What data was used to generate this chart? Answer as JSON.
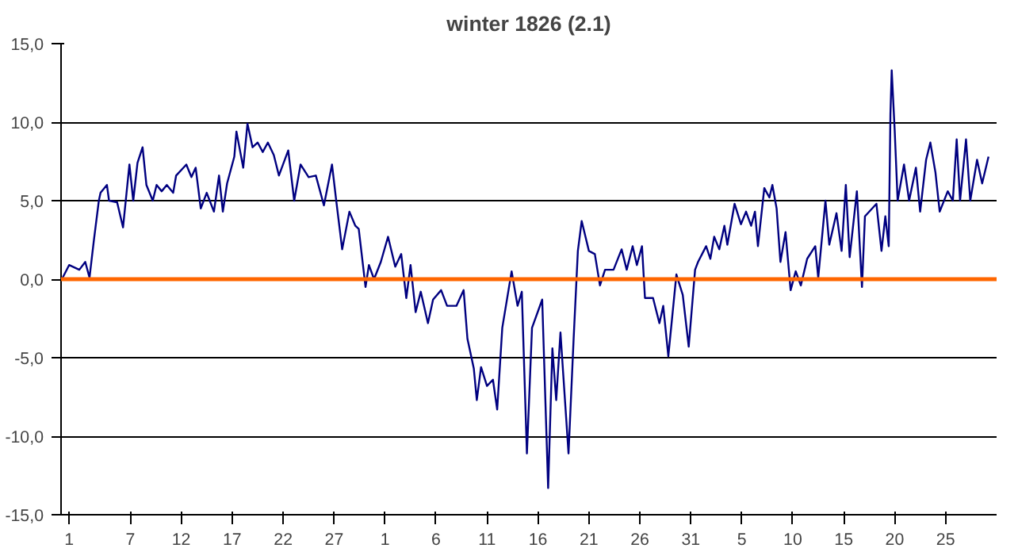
{
  "chart_data": {
    "type": "line",
    "title": "winter 1826 (2.1)",
    "series": [
      {
        "color": "#000080",
        "x": [
          "1825-11-30T07:00",
          "1825-12-01T00:00",
          "1825-12-02T00:00",
          "1825-12-02T14:00",
          "1825-12-03T00:00",
          "1825-12-03T10:00",
          "1825-12-03T22:00",
          "1825-12-04T02:00",
          "1825-12-04T17:00",
          "1825-12-04T22:00",
          "1825-12-05T17:00",
          "1825-12-06T07:00",
          "1825-12-06T22:00",
          "1825-12-07T07:00",
          "1825-12-07T17:00",
          "1825-12-08T05:00",
          "1825-12-08T14:00",
          "1825-12-09T05:00",
          "1825-12-09T14:00",
          "1825-12-10T02:00",
          "1825-12-10T14:00",
          "1825-12-11T05:00",
          "1825-12-11T12:00",
          "1825-12-12T12:00",
          "1825-12-13T00:00",
          "1825-12-13T10:00",
          "1825-12-13T22:00",
          "1825-12-14T12:00",
          "1825-12-15T05:00",
          "1825-12-15T17:00",
          "1825-12-16T02:00",
          "1825-12-16T12:00",
          "1825-12-17T05:00",
          "1825-12-17T10:00",
          "1825-12-18T02:00",
          "1825-12-18T12:00",
          "1825-12-19T00:00",
          "1825-12-19T12:00",
          "1825-12-20T00:00",
          "1825-12-20T12:00",
          "1825-12-21T02:00",
          "1825-12-21T14:00",
          "1825-12-22T12:00",
          "1825-12-23T02:00",
          "1825-12-23T17:00",
          "1825-12-24T12:00",
          "1825-12-25T05:00",
          "1825-12-26T00:00",
          "1825-12-26T19:00",
          "1825-12-27T05:00",
          "1825-12-27T19:00",
          "1825-12-28T12:00",
          "1825-12-29T02:00",
          "1825-12-29T10:00",
          "1825-12-30T02:00",
          "1825-12-30T10:00",
          "1825-12-30T22:00",
          "1825-12-31T14:00",
          "1826-01-01T07:00",
          "1826-01-02T00:00",
          "1826-01-02T14:00",
          "1826-01-03T02:00",
          "1826-01-03T12:00",
          "1826-01-04T00:00",
          "1826-01-04T12:00",
          "1826-01-05T05:00",
          "1826-01-05T17:00",
          "1826-01-06T12:00",
          "1826-01-07T02:00",
          "1826-01-08T00:00",
          "1826-01-08T17:00",
          "1826-01-09T02:00",
          "1826-01-09T17:00",
          "1826-01-10T00:00",
          "1826-01-10T10:00",
          "1826-01-11T00:00",
          "1826-01-11T14:00",
          "1826-01-12T00:00",
          "1826-01-12T12:00",
          "1826-01-13T10:00",
          "1826-01-14T00:00",
          "1826-01-14T10:00",
          "1826-01-14T22:00",
          "1826-01-15T10:00",
          "1826-01-16T10:00",
          "1826-01-17T00:00",
          "1826-01-17T10:00",
          "1826-01-17T19:00",
          "1826-01-18T05:00",
          "1826-01-19T00:00",
          "1826-01-19T12:00",
          "1826-01-19T22:00",
          "1826-01-20T07:00",
          "1826-01-21T00:00",
          "1826-01-21T14:00",
          "1826-01-22T02:00",
          "1826-01-22T14:00",
          "1826-01-23T10:00",
          "1826-01-24T05:00",
          "1826-01-24T17:00",
          "1826-01-25T07:00",
          "1826-01-25T17:00",
          "1826-01-26T05:00",
          "1826-01-26T12:00",
          "1826-01-27T07:00",
          "1826-01-27T22:00",
          "1826-01-28T07:00",
          "1826-01-28T19:00",
          "1826-01-29T14:00",
          "1826-01-30T05:00",
          "1826-01-30T19:00",
          "1826-01-31T10:00",
          "1826-01-31T17:00",
          "1826-02-01T12:00",
          "1826-02-01T22:00",
          "1826-02-02T07:00",
          "1826-02-02T19:00",
          "1826-02-03T07:00",
          "1826-02-03T14:00",
          "1826-02-04T07:00",
          "1826-02-04T22:00",
          "1826-02-05T10:00",
          "1826-02-05T22:00",
          "1826-02-06T07:00",
          "1826-02-06T14:00",
          "1826-02-07T05:00",
          "1826-02-07T17:00",
          "1826-02-08T00:00",
          "1826-02-08T10:00",
          "1826-02-08T19:00",
          "1826-02-09T07:00",
          "1826-02-09T19:00",
          "1826-02-10T07:00",
          "1826-02-10T19:00",
          "1826-02-11T10:00",
          "1826-02-12T05:00",
          "1826-02-12T12:00",
          "1826-02-13T05:00",
          "1826-02-13T14:00",
          "1826-02-14T07:00",
          "1826-02-14T19:00",
          "1826-02-15T05:00",
          "1826-02-15T14:00",
          "1826-02-16T07:00",
          "1826-02-16T19:00",
          "1826-02-17T02:00",
          "1826-02-18T05:00",
          "1826-02-18T17:00",
          "1826-02-19T02:00",
          "1826-02-19T10:00",
          "1826-02-19T14:00",
          "1826-02-19T17:00",
          "1826-02-20T00:00",
          "1826-02-20T07:00",
          "1826-02-20T22:00",
          "1826-02-21T10:00",
          "1826-02-22T02:00",
          "1826-02-22T12:00",
          "1826-02-23T02:00",
          "1826-02-23T12:00",
          "1826-02-24T00:00",
          "1826-02-24T10:00",
          "1826-02-25T05:00",
          "1826-02-25T17:00",
          "1826-02-26T02:00",
          "1826-02-26T10:00",
          "1826-02-27T00:00",
          "1826-02-27T10:00",
          "1826-02-28T02:00",
          "1826-02-28T14:00",
          "1826-03-01T05:00"
        ],
        "values": [
          0.0,
          0.9,
          0.6,
          1.1,
          0.1,
          2.4,
          5.0,
          5.5,
          6.0,
          5.0,
          4.9,
          3.3,
          7.3,
          5.0,
          7.4,
          8.4,
          6.0,
          5.0,
          6.0,
          5.6,
          6.0,
          5.5,
          6.6,
          7.3,
          6.5,
          7.1,
          4.5,
          5.5,
          4.3,
          6.6,
          4.3,
          6.1,
          7.8,
          9.4,
          7.1,
          9.9,
          8.4,
          8.7,
          8.1,
          8.7,
          7.9,
          6.6,
          8.2,
          5.0,
          7.3,
          6.5,
          6.6,
          4.7,
          7.3,
          5.0,
          1.9,
          4.3,
          3.4,
          3.2,
          -0.5,
          0.9,
          0.0,
          1.1,
          2.7,
          0.8,
          1.6,
          -1.2,
          0.9,
          -2.1,
          -0.8,
          -2.8,
          -1.3,
          -0.7,
          -1.7,
          -1.7,
          -0.7,
          -3.8,
          -5.7,
          -7.7,
          -5.6,
          -6.8,
          -6.4,
          -8.3,
          -3.1,
          0.5,
          -1.7,
          -0.8,
          -11.1,
          -3.1,
          -1.3,
          -13.3,
          -4.4,
          -7.7,
          -3.4,
          -11.1,
          -3.8,
          1.8,
          3.7,
          1.8,
          1.6,
          -0.4,
          0.6,
          0.6,
          1.9,
          0.6,
          2.1,
          0.9,
          2.1,
          -1.2,
          -1.2,
          -2.8,
          -1.7,
          -4.9,
          0.3,
          -1.0,
          -4.3,
          0.6,
          1.1,
          2.1,
          1.3,
          2.7,
          1.9,
          3.4,
          2.2,
          4.8,
          3.5,
          4.3,
          3.4,
          4.3,
          2.1,
          5.8,
          5.2,
          6.0,
          4.5,
          1.1,
          3.0,
          -0.7,
          0.5,
          -0.4,
          1.3,
          2.1,
          0.1,
          5.0,
          2.2,
          4.2,
          1.8,
          6.0,
          1.4,
          5.6,
          -0.5,
          4.0,
          4.8,
          1.8,
          4.0,
          2.1,
          10.5,
          13.3,
          9.5,
          5.0,
          7.3,
          5.0,
          7.1,
          4.3,
          7.6,
          8.7,
          6.8,
          4.3,
          5.6,
          5.0,
          8.9,
          5.0,
          8.9,
          5.0,
          7.6,
          6.1,
          7.8
        ]
      }
    ],
    "xlim": [
      "1825-11-30T05:00",
      "1826-03-02T00:00"
    ],
    "xticks": [
      {
        "value": "1825-12-01",
        "label": "1"
      },
      {
        "value": "1825-12-07",
        "label": "7"
      },
      {
        "value": "1825-12-12",
        "label": "12"
      },
      {
        "value": "1825-12-17",
        "label": "17"
      },
      {
        "value": "1825-12-22",
        "label": "22"
      },
      {
        "value": "1825-12-27",
        "label": "27"
      },
      {
        "value": "1826-01-01",
        "label": "1"
      },
      {
        "value": "1826-01-06",
        "label": "6"
      },
      {
        "value": "1826-01-11",
        "label": "11"
      },
      {
        "value": "1826-01-16",
        "label": "16"
      },
      {
        "value": "1826-01-21",
        "label": "21"
      },
      {
        "value": "1826-01-26",
        "label": "26"
      },
      {
        "value": "1826-01-31",
        "label": "31"
      },
      {
        "value": "1826-02-05",
        "label": "5"
      },
      {
        "value": "1826-02-10",
        "label": "10"
      },
      {
        "value": "1826-02-15",
        "label": "15"
      },
      {
        "value": "1826-02-20",
        "label": "20"
      },
      {
        "value": "1826-02-25",
        "label": "25"
      }
    ],
    "ylim": [
      -15,
      15
    ],
    "yticks": [
      {
        "value": -15,
        "label": "-15,0"
      },
      {
        "value": -10,
        "label": "-10,0"
      },
      {
        "value": -5,
        "label": "-5,0"
      },
      {
        "value": 0,
        "label": "0,0"
      },
      {
        "value": 5,
        "label": "5,0"
      },
      {
        "value": 10,
        "label": "10,0"
      },
      {
        "value": 15,
        "label": "15,0"
      }
    ],
    "grid": "y",
    "ref_lines": [
      {
        "axis": "y",
        "value": 0,
        "color": "#ff6600"
      }
    ]
  }
}
